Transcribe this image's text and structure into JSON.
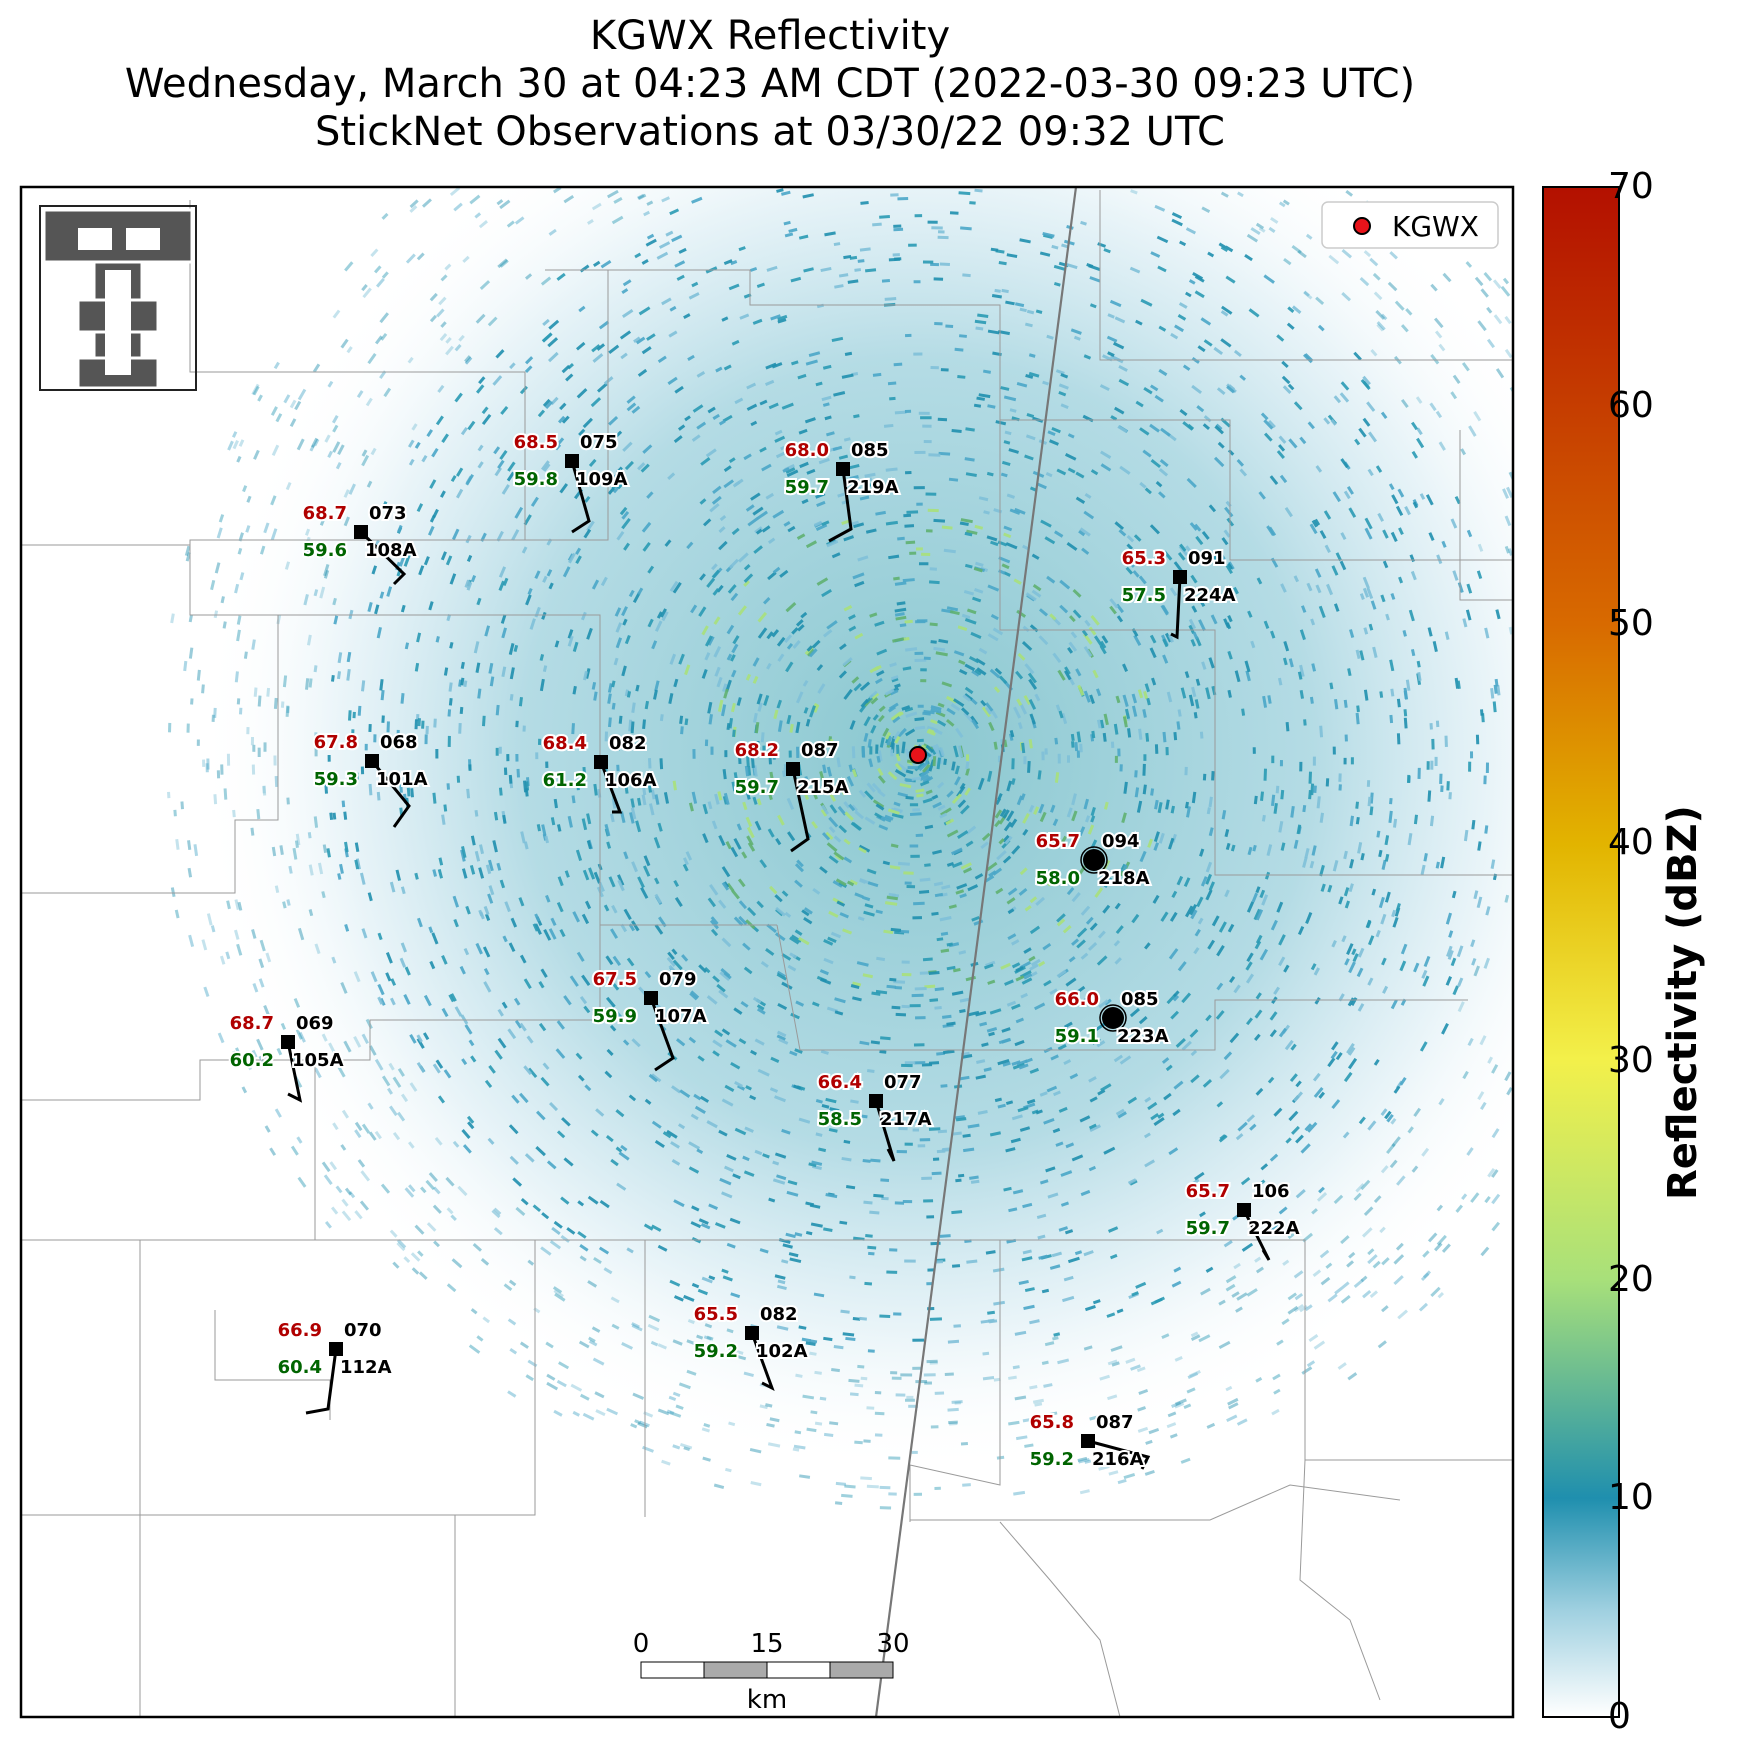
{
  "title": {
    "line1": "KGWX Reflectivity",
    "line2": "Wednesday, March 30 at 04:23 AM CDT (2022-03-30 09:23 UTC)",
    "line3": "StickNet Observations at 03/30/22 09:32 UTC"
  },
  "legend": {
    "label": "KGWX",
    "marker_color": "#e8131a"
  },
  "colorbar": {
    "label": "Reflectivity (dBZ)",
    "ticks": [
      "0",
      "10",
      "20",
      "30",
      "40",
      "50",
      "60",
      "70"
    ],
    "colors": [
      "#ffffff",
      "#1f8fae",
      "#a8e07a",
      "#f3f04a",
      "#e2b400",
      "#d86a00",
      "#b31000"
    ]
  },
  "scalebar": {
    "ticks": [
      "0",
      "15",
      "30"
    ],
    "unit": "km"
  },
  "logo": "texas-tech-double-t-logo",
  "radar": {
    "name": "KGWX",
    "color": "#e8131a"
  },
  "stations": [
    {
      "id": "109A",
      "temp": "68.5",
      "dew": "59.8",
      "dir": "075"
    },
    {
      "id": "219A",
      "temp": "68.0",
      "dew": "59.7",
      "dir": "085"
    },
    {
      "id": "108A",
      "temp": "68.7",
      "dew": "59.6",
      "dir": "073"
    },
    {
      "id": "224A",
      "temp": "65.3",
      "dew": "57.5",
      "dir": "091"
    },
    {
      "id": "101A",
      "temp": "67.8",
      "dew": "59.3",
      "dir": "068"
    },
    {
      "id": "106A",
      "temp": "68.4",
      "dew": "61.2",
      "dir": "082"
    },
    {
      "id": "215A",
      "temp": "68.2",
      "dew": "59.7",
      "dir": "087"
    },
    {
      "id": "218A",
      "temp": "65.7",
      "dew": "58.0",
      "dir": "094"
    },
    {
      "id": "107A",
      "temp": "67.5",
      "dew": "59.9",
      "dir": "079"
    },
    {
      "id": "223A",
      "temp": "66.0",
      "dew": "59.1",
      "dir": "085"
    },
    {
      "id": "105A",
      "temp": "68.7",
      "dew": "60.2",
      "dir": "069"
    },
    {
      "id": "217A",
      "temp": "66.4",
      "dew": "58.5",
      "dir": "077"
    },
    {
      "id": "222A",
      "temp": "65.7",
      "dew": "59.7",
      "dir": "106"
    },
    {
      "id": "102A",
      "temp": "65.5",
      "dew": "59.2",
      "dir": "082"
    },
    {
      "id": "112A",
      "temp": "66.9",
      "dew": "60.4",
      "dir": "070"
    },
    {
      "id": "216A",
      "temp": "65.8",
      "dew": "59.2",
      "dir": "087"
    }
  ]
}
